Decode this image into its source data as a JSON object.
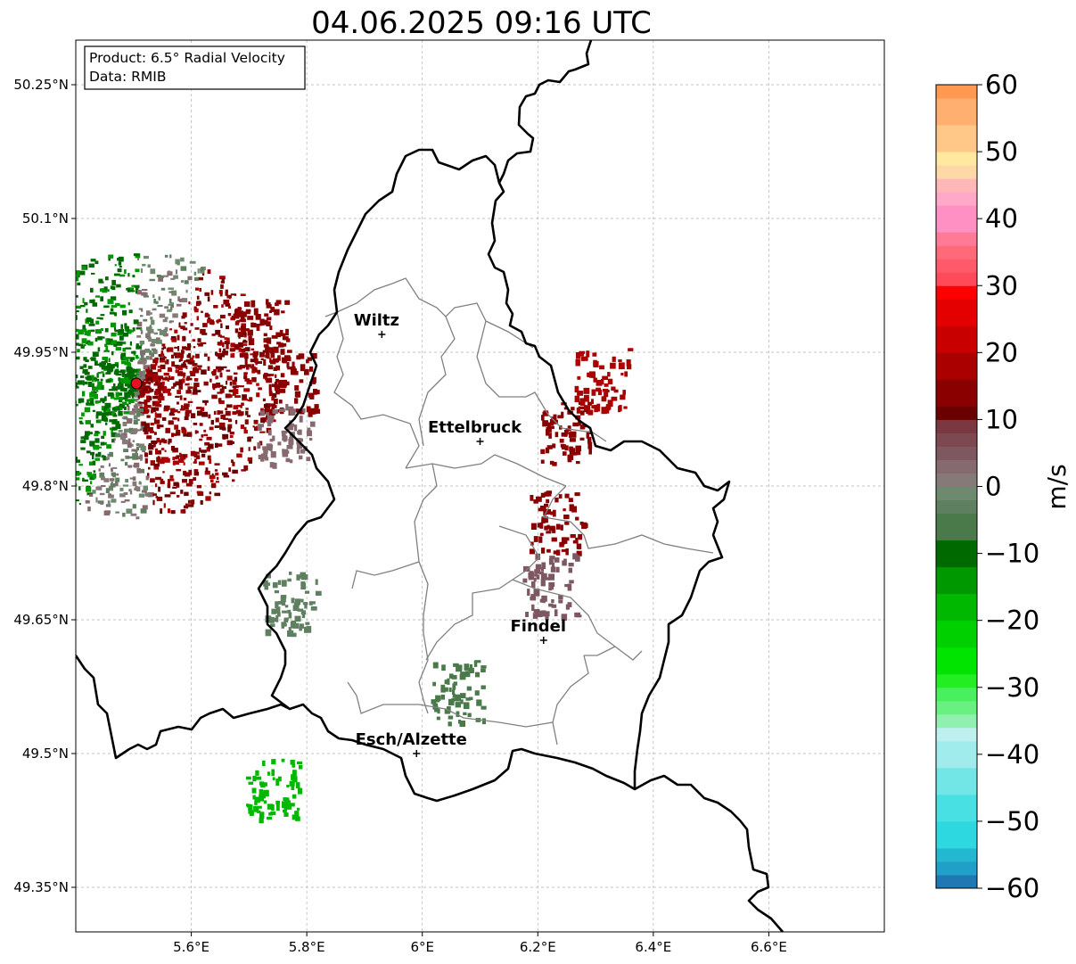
{
  "title": "04.06.2025 09:16 UTC",
  "info_box": {
    "product_line": "Product: 6.5° Radial Velocity",
    "data_line": "Data: RMIB"
  },
  "map": {
    "lon_ticks": [
      {
        "value": 5.6,
        "label": "5.6°E"
      },
      {
        "value": 5.8,
        "label": "5.8°E"
      },
      {
        "value": 6.0,
        "label": "6°E"
      },
      {
        "value": 6.2,
        "label": "6.2°E"
      },
      {
        "value": 6.4,
        "label": "6.4°E"
      },
      {
        "value": 6.6,
        "label": "6.6°E"
      }
    ],
    "lat_ticks": [
      {
        "value": 50.25,
        "label": "50.25°N"
      },
      {
        "value": 50.1,
        "label": "50.1°N"
      },
      {
        "value": 49.95,
        "label": "49.95°N"
      },
      {
        "value": 49.8,
        "label": "49.8°N"
      },
      {
        "value": 49.65,
        "label": "49.65°N"
      },
      {
        "value": 49.5,
        "label": "49.5°N"
      },
      {
        "value": 49.35,
        "label": "49.35°N"
      }
    ],
    "extent": {
      "lon_min": 5.4,
      "lon_max": 6.8,
      "lat_min": 49.3,
      "lat_max": 50.3
    },
    "grid": true,
    "cities": [
      {
        "name": "Wiltz",
        "lon": 5.93,
        "lat": 49.97
      },
      {
        "name": "Ettelbruck",
        "lon": 6.1,
        "lat": 49.85
      },
      {
        "name": "Findel",
        "lon": 6.21,
        "lat": 49.627
      },
      {
        "name": "Esch/Alzette",
        "lon": 5.99,
        "lat": 49.5
      }
    ],
    "radar_site": {
      "lon": 5.505,
      "lat": 49.915,
      "color": "#e8121d"
    }
  },
  "colorbar": {
    "label": "m/s",
    "min": -60,
    "max": 60,
    "ticks": [
      {
        "value": 60,
        "label": "60"
      },
      {
        "value": 50,
        "label": "50"
      },
      {
        "value": 40,
        "label": "40"
      },
      {
        "value": 30,
        "label": "30"
      },
      {
        "value": 20,
        "label": "20"
      },
      {
        "value": 10,
        "label": "10"
      },
      {
        "value": 0,
        "label": "0"
      },
      {
        "value": -10,
        "label": "−10"
      },
      {
        "value": -20,
        "label": "−20"
      },
      {
        "value": -30,
        "label": "−30"
      },
      {
        "value": -40,
        "label": "−40"
      },
      {
        "value": -50,
        "label": "−50"
      },
      {
        "value": -60,
        "label": "−60"
      }
    ],
    "stops": [
      {
        "from": -60,
        "to": -58,
        "color": "#1f77b4"
      },
      {
        "from": -58,
        "to": -56,
        "color": "#20a0c8"
      },
      {
        "from": -56,
        "to": -54,
        "color": "#21b8d0"
      },
      {
        "from": -54,
        "to": -50,
        "color": "#2ed8e0"
      },
      {
        "from": -50,
        "to": -46,
        "color": "#48e0e2"
      },
      {
        "from": -46,
        "to": -42,
        "color": "#72e6e6"
      },
      {
        "from": -42,
        "to": -38,
        "color": "#a0ecec"
      },
      {
        "from": -38,
        "to": -36,
        "color": "#bff0f0"
      },
      {
        "from": -36,
        "to": -34,
        "color": "#90f0b0"
      },
      {
        "from": -34,
        "to": -32,
        "color": "#68f080"
      },
      {
        "from": -32,
        "to": -30,
        "color": "#48f060"
      },
      {
        "from": -30,
        "to": -28,
        "color": "#22ee22"
      },
      {
        "from": -28,
        "to": -24,
        "color": "#00e400"
      },
      {
        "from": -24,
        "to": -20,
        "color": "#00d000"
      },
      {
        "from": -20,
        "to": -16,
        "color": "#00b800"
      },
      {
        "from": -16,
        "to": -12,
        "color": "#009800"
      },
      {
        "from": -12,
        "to": -8,
        "color": "#006a00"
      },
      {
        "from": -8,
        "to": -4,
        "color": "#4a7a4a"
      },
      {
        "from": -4,
        "to": -2,
        "color": "#5f8060"
      },
      {
        "from": -2,
        "to": 0,
        "color": "#6e8a6e"
      },
      {
        "from": 0,
        "to": 2,
        "color": "#857a78"
      },
      {
        "from": 2,
        "to": 4,
        "color": "#866a70"
      },
      {
        "from": 4,
        "to": 6,
        "color": "#7e5860"
      },
      {
        "from": 6,
        "to": 8,
        "color": "#7e4850"
      },
      {
        "from": 8,
        "to": 10,
        "color": "#7a3840"
      },
      {
        "from": 10,
        "to": 12,
        "color": "#6a0000"
      },
      {
        "from": 12,
        "to": 16,
        "color": "#8a0000"
      },
      {
        "from": 16,
        "to": 20,
        "color": "#aa0000"
      },
      {
        "from": 20,
        "to": 24,
        "color": "#c80000"
      },
      {
        "from": 24,
        "to": 28,
        "color": "#e40000"
      },
      {
        "from": 28,
        "to": 30,
        "color": "#ff0000"
      },
      {
        "from": 30,
        "to": 32,
        "color": "#ff4a5a"
      },
      {
        "from": 32,
        "to": 34,
        "color": "#ff5a6a"
      },
      {
        "from": 34,
        "to": 36,
        "color": "#ff6a7a"
      },
      {
        "from": 36,
        "to": 38,
        "color": "#ff7a96"
      },
      {
        "from": 38,
        "to": 42,
        "color": "#ff90c4"
      },
      {
        "from": 42,
        "to": 44,
        "color": "#ffa8c8"
      },
      {
        "from": 44,
        "to": 46,
        "color": "#ffb8b8"
      },
      {
        "from": 46,
        "to": 48,
        "color": "#ffd8a8"
      },
      {
        "from": 48,
        "to": 50,
        "color": "#ffe8a0"
      },
      {
        "from": 50,
        "to": 54,
        "color": "#ffc888"
      },
      {
        "from": 54,
        "to": 58,
        "color": "#ffb070"
      },
      {
        "from": 58,
        "to": 60,
        "color": "#ff9850"
      }
    ]
  },
  "radar_clusters": [
    {
      "lon": 5.72,
      "lat": 49.975,
      "color": "#8a0000"
    },
    {
      "lon": 5.77,
      "lat": 49.915,
      "color": "#8a0000"
    },
    {
      "lon": 5.76,
      "lat": 49.86,
      "color": "#866a70"
    },
    {
      "lon": 6.25,
      "lat": 49.86,
      "color": "#8a0000"
    },
    {
      "lon": 6.31,
      "lat": 49.92,
      "color": "#aa0000"
    },
    {
      "lon": 6.23,
      "lat": 49.76,
      "color": "#8a0000"
    },
    {
      "lon": 6.22,
      "lat": 49.69,
      "color": "#7e5860"
    },
    {
      "lon": 6.06,
      "lat": 49.57,
      "color": "#4a7a4a"
    },
    {
      "lon": 5.74,
      "lat": 49.46,
      "color": "#00b800"
    },
    {
      "lon": 5.77,
      "lat": 49.67,
      "color": "#5f8060"
    }
  ]
}
